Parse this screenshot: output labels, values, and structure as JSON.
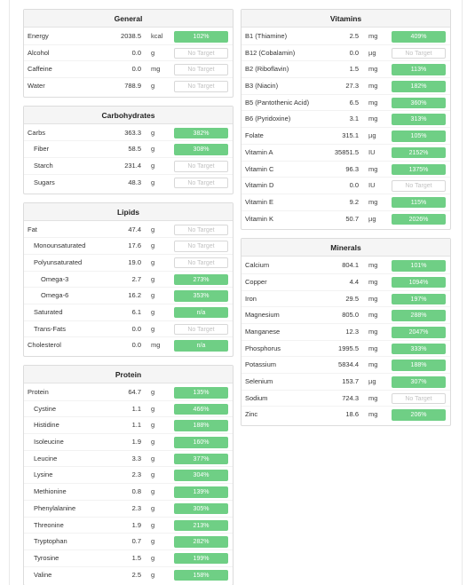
{
  "colors": {
    "bar_fill": "#6fcf85",
    "no_target_text": "#c2c2c2",
    "panel_header_bg": "#f5f5f5"
  },
  "left_column": [
    {
      "title": "General",
      "rows": [
        {
          "name": "Energy",
          "value": "2038.5",
          "unit": "kcal",
          "target": "102%",
          "indent": 0
        },
        {
          "name": "Alcohol",
          "value": "0.0",
          "unit": "g",
          "target": "No Target",
          "indent": 0
        },
        {
          "name": "Caffeine",
          "value": "0.0",
          "unit": "mg",
          "target": "No Target",
          "indent": 0
        },
        {
          "name": "Water",
          "value": "788.9",
          "unit": "g",
          "target": "No Target",
          "indent": 0
        }
      ]
    },
    {
      "title": "Carbohydrates",
      "rows": [
        {
          "name": "Carbs",
          "value": "363.3",
          "unit": "g",
          "target": "382%",
          "indent": 0
        },
        {
          "name": "Fiber",
          "value": "58.5",
          "unit": "g",
          "target": "308%",
          "indent": 1
        },
        {
          "name": "Starch",
          "value": "231.4",
          "unit": "g",
          "target": "No Target",
          "indent": 1
        },
        {
          "name": "Sugars",
          "value": "48.3",
          "unit": "g",
          "target": "No Target",
          "indent": 1
        }
      ]
    },
    {
      "title": "Lipids",
      "rows": [
        {
          "name": "Fat",
          "value": "47.4",
          "unit": "g",
          "target": "No Target",
          "indent": 0
        },
        {
          "name": "Monounsaturated",
          "value": "17.6",
          "unit": "g",
          "target": "No Target",
          "indent": 1
        },
        {
          "name": "Polyunsaturated",
          "value": "19.0",
          "unit": "g",
          "target": "No Target",
          "indent": 1
        },
        {
          "name": "Omega-3",
          "value": "2.7",
          "unit": "g",
          "target": "273%",
          "indent": 2
        },
        {
          "name": "Omega-6",
          "value": "16.2",
          "unit": "g",
          "target": "353%",
          "indent": 2
        },
        {
          "name": "Saturated",
          "value": "6.1",
          "unit": "g",
          "target": "n/a",
          "indent": 1
        },
        {
          "name": "Trans-Fats",
          "value": "0.0",
          "unit": "g",
          "target": "No Target",
          "indent": 1
        },
        {
          "name": "Cholesterol",
          "value": "0.0",
          "unit": "mg",
          "target": "n/a",
          "indent": 0
        }
      ]
    },
    {
      "title": "Protein",
      "rows": [
        {
          "name": "Protein",
          "value": "64.7",
          "unit": "g",
          "target": "135%",
          "indent": 0
        },
        {
          "name": "Cystine",
          "value": "1.1",
          "unit": "g",
          "target": "466%",
          "indent": 1
        },
        {
          "name": "Histidine",
          "value": "1.1",
          "unit": "g",
          "target": "188%",
          "indent": 1
        },
        {
          "name": "Isoleucine",
          "value": "1.9",
          "unit": "g",
          "target": "160%",
          "indent": 1
        },
        {
          "name": "Leucine",
          "value": "3.3",
          "unit": "g",
          "target": "377%",
          "indent": 1
        },
        {
          "name": "Lysine",
          "value": "2.3",
          "unit": "g",
          "target": "304%",
          "indent": 1
        },
        {
          "name": "Methionine",
          "value": "0.8",
          "unit": "g",
          "target": "139%",
          "indent": 1
        },
        {
          "name": "Phenylalanine",
          "value": "2.3",
          "unit": "g",
          "target": "305%",
          "indent": 1
        },
        {
          "name": "Threonine",
          "value": "1.9",
          "unit": "g",
          "target": "213%",
          "indent": 1
        },
        {
          "name": "Tryptophan",
          "value": "0.7",
          "unit": "g",
          "target": "282%",
          "indent": 1
        },
        {
          "name": "Tyrosine",
          "value": "1.5",
          "unit": "g",
          "target": "199%",
          "indent": 1
        },
        {
          "name": "Valine",
          "value": "2.5",
          "unit": "g",
          "target": "158%",
          "indent": 1
        }
      ]
    }
  ],
  "right_column": [
    {
      "title": "Vitamins",
      "rows": [
        {
          "name": "B1 (Thiamine)",
          "value": "2.5",
          "unit": "mg",
          "target": "409%",
          "indent": 0
        },
        {
          "name": "B12 (Cobalamin)",
          "value": "0.0",
          "unit": "µg",
          "target": "No Target",
          "indent": 0
        },
        {
          "name": "B2 (Riboflavin)",
          "value": "1.5",
          "unit": "mg",
          "target": "113%",
          "indent": 0
        },
        {
          "name": "B3 (Niacin)",
          "value": "27.3",
          "unit": "mg",
          "target": "182%",
          "indent": 0
        },
        {
          "name": "B5 (Pantothenic Acid)",
          "value": "6.5",
          "unit": "mg",
          "target": "360%",
          "indent": 0
        },
        {
          "name": "B6 (Pyridoxine)",
          "value": "3.1",
          "unit": "mg",
          "target": "313%",
          "indent": 0
        },
        {
          "name": "Folate",
          "value": "315.1",
          "unit": "µg",
          "target": "105%",
          "indent": 0
        },
        {
          "name": "Vitamin A",
          "value": "35851.5",
          "unit": "IU",
          "target": "2152%",
          "indent": 0
        },
        {
          "name": "Vitamin C",
          "value": "96.3",
          "unit": "mg",
          "target": "1375%",
          "indent": 0
        },
        {
          "name": "Vitamin D",
          "value": "0.0",
          "unit": "IU",
          "target": "No Target",
          "indent": 0
        },
        {
          "name": "Vitamin E",
          "value": "9.2",
          "unit": "mg",
          "target": "115%",
          "indent": 0
        },
        {
          "name": "Vitamin K",
          "value": "50.7",
          "unit": "µg",
          "target": "2026%",
          "indent": 0
        }
      ]
    },
    {
      "title": "Minerals",
      "rows": [
        {
          "name": "Calcium",
          "value": "804.1",
          "unit": "mg",
          "target": "101%",
          "indent": 0
        },
        {
          "name": "Copper",
          "value": "4.4",
          "unit": "mg",
          "target": "1094%",
          "indent": 0
        },
        {
          "name": "Iron",
          "value": "29.5",
          "unit": "mg",
          "target": "197%",
          "indent": 0
        },
        {
          "name": "Magnesium",
          "value": "805.0",
          "unit": "mg",
          "target": "288%",
          "indent": 0
        },
        {
          "name": "Manganese",
          "value": "12.3",
          "unit": "mg",
          "target": "2047%",
          "indent": 0
        },
        {
          "name": "Phosphorus",
          "value": "1995.5",
          "unit": "mg",
          "target": "333%",
          "indent": 0
        },
        {
          "name": "Potassium",
          "value": "5834.4",
          "unit": "mg",
          "target": "188%",
          "indent": 0
        },
        {
          "name": "Selenium",
          "value": "153.7",
          "unit": "µg",
          "target": "307%",
          "indent": 0
        },
        {
          "name": "Sodium",
          "value": "724.3",
          "unit": "mg",
          "target": "No Target",
          "indent": 0
        },
        {
          "name": "Zinc",
          "value": "18.6",
          "unit": "mg",
          "target": "206%",
          "indent": 0
        }
      ]
    }
  ]
}
